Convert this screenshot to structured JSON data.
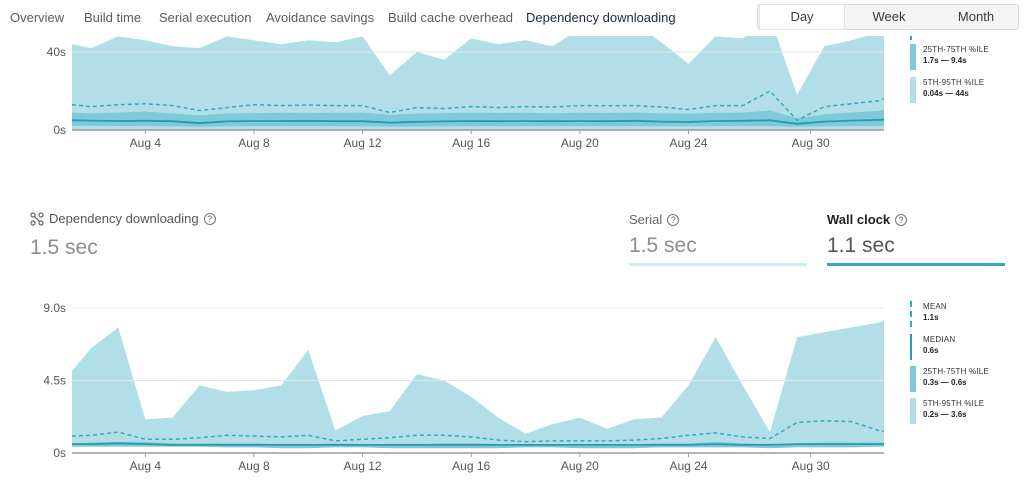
{
  "nav": {
    "tabs": [
      {
        "label": "Overview"
      },
      {
        "label": "Build time"
      },
      {
        "label": "Serial execution"
      },
      {
        "label": "Avoidance savings"
      },
      {
        "label": "Build cache overhead"
      },
      {
        "label": "Dependency downloading"
      }
    ],
    "active_tab": "Dependency downloading",
    "range": {
      "day": "Day",
      "week": "Week",
      "month": "Month",
      "selected": "Day"
    }
  },
  "colors": {
    "band_5_95": "#b2dfe7",
    "band_25_75": "#7ecad8",
    "mean": "#35a7c2",
    "median": "#2799b4",
    "wall_clock_underline": "#35a7c2",
    "serial_underline": "#d0ecf2"
  },
  "stats": {
    "title": "Dependency downloading",
    "title_icon": "dependency-icon",
    "value": "1.5 sec",
    "serial_label": "Serial",
    "serial_value": "1.5 sec",
    "wall_label": "Wall clock",
    "wall_value": "1.1 sec"
  },
  "top_legend": {
    "items": [
      {
        "title": "25TH-75TH %ILE",
        "value": "1.7s — 9.4s"
      },
      {
        "title": "5TH-95TH %ILE",
        "value": "0.04s — 44s"
      }
    ]
  },
  "bottom_legend": {
    "items": [
      {
        "title": "MEAN",
        "value": "1.1s"
      },
      {
        "title": "MEDIAN",
        "value": "0.6s"
      },
      {
        "title": "25TH-75TH %ILE",
        "value": "0.3s — 0.6s"
      },
      {
        "title": "5TH-95TH %ILE",
        "value": "0.2s — 3.6s"
      }
    ]
  },
  "chart_data": [
    {
      "type": "area",
      "x_tick_labels": [
        "Aug 4",
        "Aug 8",
        "Aug 12",
        "Aug 16",
        "Aug 20",
        "Aug 24",
        "Aug 30"
      ],
      "x_tick_days": [
        4,
        8,
        12,
        16,
        20,
        24,
        28.5
      ],
      "x_range": [
        1.3,
        31.2
      ],
      "y_tick_labels": [
        "0s",
        "40s"
      ],
      "y_ticks": [
        0,
        40
      ],
      "y_visible_max": 50,
      "x": [
        1.3,
        2,
        3,
        4,
        5,
        6,
        7,
        8,
        9,
        10,
        11,
        12,
        13,
        14,
        15,
        16,
        17,
        18,
        19,
        20,
        21,
        22,
        23,
        24,
        25,
        26,
        27,
        28,
        29,
        30,
        31,
        31.2
      ],
      "series": [
        {
          "name": "5TH-95TH %ILE",
          "kind": "band",
          "lower": [
            0.1,
            0.1,
            0.1,
            0.1,
            0.1,
            0.1,
            0.1,
            0.1,
            0.1,
            0.1,
            0.1,
            0.1,
            0.1,
            0.1,
            0.1,
            0.1,
            0.1,
            0.1,
            0.1,
            0.1,
            0.1,
            0.1,
            0.1,
            0.1,
            0.1,
            0.1,
            0.1,
            0.1,
            0.1,
            0.1,
            0.1,
            0.1
          ],
          "upper": [
            44,
            42,
            48,
            46,
            43,
            42,
            48,
            46,
            44,
            46,
            45,
            48,
            28,
            40,
            36,
            47,
            44,
            46,
            43,
            52,
            49,
            55,
            45,
            34,
            48,
            47,
            58,
            18,
            43,
            46,
            50,
            52
          ]
        },
        {
          "name": "25TH-75TH %ILE",
          "kind": "band",
          "lower": [
            2.2,
            2.1,
            2,
            2,
            1.9,
            1.7,
            1.9,
            2,
            2,
            2,
            2,
            2,
            1.7,
            1.8,
            1.9,
            2,
            2,
            2,
            2,
            2,
            2,
            2,
            1.9,
            1.9,
            2,
            2,
            2,
            1.7,
            1.9,
            2,
            2.1,
            2.2
          ],
          "upper": [
            9,
            8.5,
            9,
            9.5,
            8.5,
            7.5,
            8.5,
            8.6,
            8.8,
            8.7,
            8.8,
            9,
            7.8,
            8.4,
            8.6,
            9,
            8.7,
            8.8,
            8.5,
            8.8,
            8.7,
            9,
            8.5,
            8.3,
            8.8,
            9,
            10,
            6,
            8,
            9,
            9.8,
            10.5
          ]
        },
        {
          "name": "MEAN",
          "kind": "dashed",
          "values": [
            13,
            12,
            13,
            13.5,
            12.5,
            10,
            11.5,
            13,
            12.5,
            12.8,
            12.5,
            12.5,
            9,
            11.5,
            11,
            12,
            11.5,
            12,
            11.8,
            12.5,
            12.4,
            12.5,
            11.8,
            10.5,
            12.5,
            12.5,
            20,
            5,
            12,
            13.5,
            15,
            16
          ]
        },
        {
          "name": "MEDIAN",
          "kind": "solid",
          "values": [
            5,
            4.8,
            4.6,
            4.7,
            4.5,
            3.5,
            4.4,
            4.6,
            4.6,
            4.7,
            4.5,
            4.5,
            3.8,
            4.2,
            4.4,
            4.6,
            4.5,
            4.6,
            4.5,
            4.6,
            4.5,
            4.7,
            4.3,
            4.1,
            4.6,
            4.7,
            5,
            3.2,
            4.3,
            4.8,
            5.2,
            5.3
          ]
        }
      ]
    },
    {
      "type": "area",
      "x_tick_labels": [
        "Aug 4",
        "Aug 8",
        "Aug 12",
        "Aug 16",
        "Aug 20",
        "Aug 24",
        "Aug 30"
      ],
      "x_tick_days": [
        4,
        8,
        12,
        16,
        20,
        24,
        28.5
      ],
      "x_range": [
        1.3,
        31.2
      ],
      "y_tick_labels": [
        "0s",
        "4.5s",
        "9.0s"
      ],
      "y_ticks": [
        0,
        4.5,
        9.0
      ],
      "y_visible_max": 9.0,
      "x": [
        1.3,
        2,
        3,
        4,
        5,
        6,
        7,
        8,
        9,
        10,
        11,
        12,
        13,
        14,
        15,
        16,
        17,
        18,
        19,
        20,
        21,
        22,
        23,
        24,
        25,
        26,
        27,
        28,
        29,
        30,
        31,
        31.2
      ],
      "series": [
        {
          "name": "5TH-95TH %ILE",
          "kind": "band",
          "lower": [
            0.4,
            0.4,
            0.4,
            0.4,
            0.4,
            0.4,
            0.4,
            0.4,
            0.4,
            0.4,
            0.4,
            0.4,
            0.4,
            0.4,
            0.4,
            0.4,
            0.4,
            0.4,
            0.4,
            0.4,
            0.4,
            0.4,
            0.4,
            0.4,
            0.4,
            0.4,
            0.4,
            0.4,
            0.4,
            0.4,
            0.4,
            0.4
          ],
          "upper": [
            5.1,
            6.5,
            7.8,
            2.1,
            2.2,
            4.2,
            3.8,
            3.9,
            4.2,
            6.4,
            1.4,
            2.3,
            2.6,
            4.9,
            4.5,
            3.5,
            2.2,
            1.2,
            1.8,
            2.2,
            1.5,
            2.1,
            2.2,
            4.2,
            7.2,
            4.2,
            1.3,
            7.2,
            7.5,
            7.8,
            8.1,
            8.2
          ]
        },
        {
          "name": "25TH-75TH %ILE",
          "kind": "band",
          "lower": [
            0.4,
            0.4,
            0.4,
            0.4,
            0.4,
            0.4,
            0.35,
            0.35,
            0.3,
            0.3,
            0.35,
            0.35,
            0.3,
            0.3,
            0.3,
            0.3,
            0.3,
            0.35,
            0.35,
            0.3,
            0.3,
            0.3,
            0.35,
            0.35,
            0.35,
            0.35,
            0.3,
            0.35,
            0.35,
            0.35,
            0.4,
            0.4
          ],
          "upper": [
            0.6,
            0.65,
            0.7,
            0.7,
            0.6,
            0.6,
            0.6,
            0.6,
            0.55,
            0.55,
            0.6,
            0.55,
            0.55,
            0.55,
            0.6,
            0.6,
            0.55,
            0.55,
            0.55,
            0.55,
            0.55,
            0.55,
            0.6,
            0.6,
            0.7,
            0.6,
            0.55,
            0.6,
            0.65,
            0.65,
            0.65,
            0.65
          ]
        },
        {
          "name": "MEAN",
          "kind": "dashed",
          "values": [
            1.05,
            1.1,
            1.3,
            0.85,
            0.85,
            0.95,
            1.1,
            1.05,
            1.0,
            1.1,
            0.75,
            0.85,
            0.95,
            1.1,
            1.1,
            1.0,
            0.8,
            0.7,
            0.75,
            0.75,
            0.75,
            0.8,
            0.9,
            1.1,
            1.25,
            1.0,
            0.9,
            1.9,
            2.0,
            1.95,
            1.4,
            1.35
          ]
        },
        {
          "name": "MEDIAN",
          "kind": "solid",
          "values": [
            0.55,
            0.55,
            0.6,
            0.55,
            0.5,
            0.5,
            0.5,
            0.5,
            0.5,
            0.5,
            0.5,
            0.5,
            0.5,
            0.5,
            0.5,
            0.5,
            0.5,
            0.5,
            0.5,
            0.5,
            0.5,
            0.5,
            0.5,
            0.5,
            0.55,
            0.5,
            0.5,
            0.55,
            0.55,
            0.55,
            0.55,
            0.55
          ]
        }
      ]
    }
  ]
}
